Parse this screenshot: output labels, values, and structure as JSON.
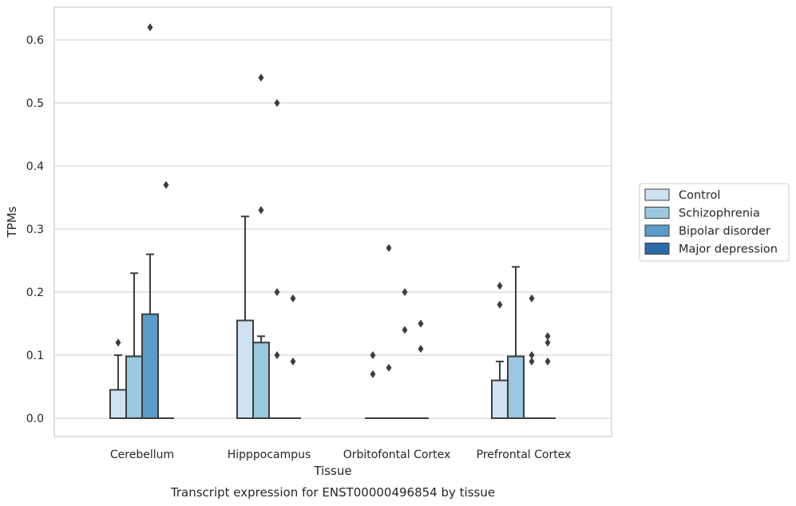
{
  "chart_data": {
    "type": "box",
    "xlabel": "Tissue",
    "ylabel": "TPMs",
    "caption": "Transcript expression for ENST00000496854 by tissue",
    "ylim": [
      -0.03,
      0.655
    ],
    "yticks": [
      0.0,
      0.1,
      0.2,
      0.3,
      0.4,
      0.5,
      0.6
    ],
    "ytick_labels": [
      "0.0",
      "0.1",
      "0.2",
      "0.3",
      "0.4",
      "0.5",
      "0.6"
    ],
    "grid": "horizontal",
    "legend_position": "right",
    "categories": [
      "Cerebellum",
      "Hipppocampus",
      "Orbitofontal Cortex",
      "Prefrontal Cortex"
    ],
    "series": [
      {
        "name": "Control",
        "color": "#d0e1f2",
        "boxes": [
          {
            "q1": 0.0,
            "median": 0.0,
            "q3": 0.045,
            "whisker_low": 0.0,
            "whisker_high": 0.1,
            "outliers": [
              0.12
            ]
          },
          {
            "q1": 0.0,
            "median": 0.0,
            "q3": 0.155,
            "whisker_low": 0.0,
            "whisker_high": 0.32,
            "outliers": []
          },
          {
            "q1": 0.0,
            "median": 0.0,
            "q3": 0.0,
            "whisker_low": 0.0,
            "whisker_high": 0.0,
            "outliers": [
              0.1,
              0.07
            ]
          },
          {
            "q1": 0.0,
            "median": 0.0,
            "q3": 0.06,
            "whisker_low": 0.0,
            "whisker_high": 0.09,
            "outliers": [
              0.21,
              0.18
            ]
          }
        ]
      },
      {
        "name": "Schizophrenia",
        "color": "#9ac8e0",
        "boxes": [
          {
            "q1": 0.0,
            "median": 0.0,
            "q3": 0.098,
            "whisker_low": 0.0,
            "whisker_high": 0.23,
            "outliers": []
          },
          {
            "q1": 0.0,
            "median": 0.0,
            "q3": 0.12,
            "whisker_low": 0.0,
            "whisker_high": 0.13,
            "outliers": [
              0.54,
              0.33
            ]
          },
          {
            "q1": 0.0,
            "median": 0.0,
            "q3": 0.0,
            "whisker_low": 0.0,
            "whisker_high": 0.0,
            "outliers": [
              0.27,
              0.08
            ]
          },
          {
            "q1": 0.0,
            "median": 0.0,
            "q3": 0.098,
            "whisker_low": 0.0,
            "whisker_high": 0.24,
            "outliers": []
          }
        ]
      },
      {
        "name": "Bipolar disorder",
        "color": "#5a9bc9",
        "boxes": [
          {
            "q1": 0.0,
            "median": 0.0,
            "q3": 0.165,
            "whisker_low": 0.0,
            "whisker_high": 0.26,
            "outliers": [
              0.62
            ]
          },
          {
            "q1": 0.0,
            "median": 0.0,
            "q3": 0.0,
            "whisker_low": 0.0,
            "whisker_high": 0.0,
            "outliers": [
              0.5,
              0.2,
              0.1
            ]
          },
          {
            "q1": 0.0,
            "median": 0.0,
            "q3": 0.0,
            "whisker_low": 0.0,
            "whisker_high": 0.0,
            "outliers": [
              0.2,
              0.14
            ]
          },
          {
            "q1": 0.0,
            "median": 0.0,
            "q3": 0.0,
            "whisker_low": 0.0,
            "whisker_high": 0.0,
            "outliers": [
              0.19,
              0.1,
              0.09
            ]
          }
        ]
      },
      {
        "name": "Major depression",
        "color": "#2b6ca8",
        "boxes": [
          {
            "q1": 0.0,
            "median": 0.0,
            "q3": 0.0,
            "whisker_low": 0.0,
            "whisker_high": 0.0,
            "outliers": [
              0.37
            ]
          },
          {
            "q1": 0.0,
            "median": 0.0,
            "q3": 0.0,
            "whisker_low": 0.0,
            "whisker_high": 0.0,
            "outliers": [
              0.19,
              0.09
            ]
          },
          {
            "q1": 0.0,
            "median": 0.0,
            "q3": 0.0,
            "whisker_low": 0.0,
            "whisker_high": 0.0,
            "outliers": [
              0.15,
              0.11
            ]
          },
          {
            "q1": 0.0,
            "median": 0.0,
            "q3": 0.0,
            "whisker_low": 0.0,
            "whisker_high": 0.0,
            "outliers": [
              0.13,
              0.12,
              0.09
            ]
          }
        ]
      }
    ]
  }
}
